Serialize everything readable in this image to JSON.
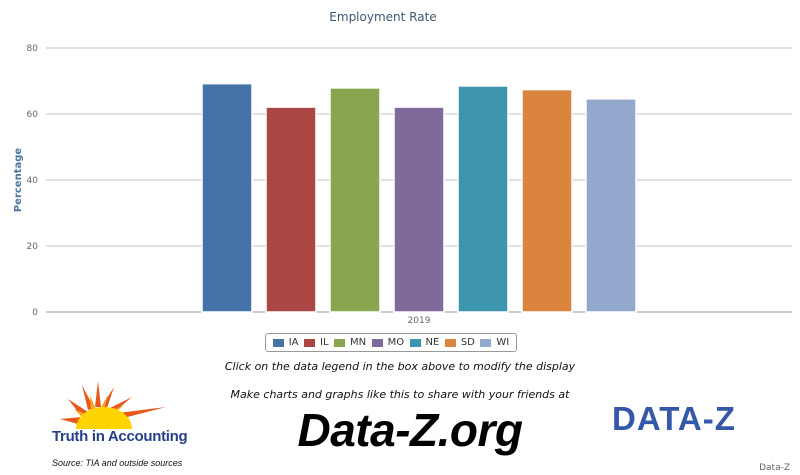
{
  "chart_data": {
    "type": "bar",
    "title": "Employment Rate",
    "ylabel": "Percentage",
    "xlabel": "",
    "categories": [
      "2019"
    ],
    "ylim": [
      0,
      80
    ],
    "yticks": [
      0,
      20,
      40,
      60,
      80
    ],
    "grid": true,
    "legend_position": "bottom",
    "series": [
      {
        "name": "IA",
        "color": "#4572a7",
        "values": [
          69.2
        ]
      },
      {
        "name": "IL",
        "color": "#aa4643",
        "values": [
          62.1
        ]
      },
      {
        "name": "MN",
        "color": "#89a54e",
        "values": [
          67.9
        ]
      },
      {
        "name": "MO",
        "color": "#80699b",
        "values": [
          62.1
        ]
      },
      {
        "name": "NE",
        "color": "#3d96ae",
        "values": [
          68.5
        ]
      },
      {
        "name": "SD",
        "color": "#db843d",
        "values": [
          67.4
        ]
      },
      {
        "name": "WI",
        "color": "#92a8cd",
        "values": [
          64.6
        ]
      }
    ]
  },
  "legend_hint": "Click on the data legend in the box above to modify the display",
  "promo_text": "Make charts and graphs like this to share with your friends at",
  "brand_site": "Data-Z.org",
  "tia_brand": "Truth in Accounting",
  "source_note": "Source: TIA and outside sources",
  "dz_logo_text": "DATA-Z",
  "corner_credit": "Data-Z"
}
